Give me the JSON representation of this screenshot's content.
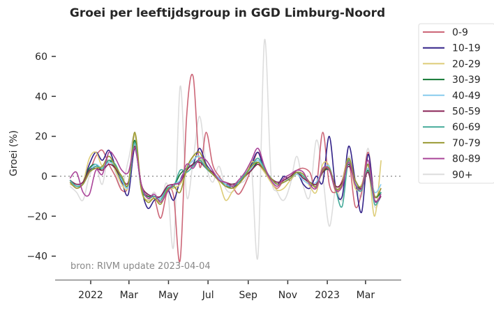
{
  "chart_data": {
    "type": "line",
    "title": "Groei per leeftijdsgroup in GGD Limburg-Noord",
    "ylabel": "Groei (%)",
    "xlabel": "",
    "annotation": "bron: RIVM update 2023-04-04",
    "ylim": [
      -52,
      73
    ],
    "yticks": [
      60,
      40,
      20,
      0,
      -20,
      -40
    ],
    "ytick_labels": [
      "60",
      "40",
      "20",
      "0",
      "−20",
      "−40"
    ],
    "xticks": [
      {
        "date": "2022-01-01",
        "label": "2022"
      },
      {
        "date": "2022-03-01",
        "label": "Mar"
      },
      {
        "date": "2022-05-01",
        "label": "May"
      },
      {
        "date": "2022-07-01",
        "label": "Jul"
      },
      {
        "date": "2022-09-01",
        "label": "Sep"
      },
      {
        "date": "2022-11-01",
        "label": "Nov"
      },
      {
        "date": "2023-01-01",
        "label": "2023"
      },
      {
        "date": "2023-03-01",
        "label": "Mar"
      }
    ],
    "x_start": "2021-11-30",
    "x_step_days": 10,
    "reference_line": 0,
    "legend_position": "outside-right",
    "series": [
      {
        "name": "0-9",
        "color": "#CC6677",
        "values": [
          -3,
          -6,
          -4,
          2,
          10,
          13,
          6,
          0,
          -7,
          -5,
          16,
          -4,
          -10,
          -11,
          -21,
          -8,
          -10,
          -42,
          30,
          50,
          5,
          22,
          6,
          0,
          -4,
          -5,
          -9,
          -4,
          4,
          12,
          4,
          -3,
          -6,
          -2,
          0,
          3,
          4,
          2,
          -5,
          22,
          -4,
          -8,
          -2,
          8,
          -15,
          -8,
          12,
          -10,
          -6
        ]
      },
      {
        "name": "10-19",
        "color": "#332288",
        "values": [
          -2,
          -5,
          -3,
          6,
          12,
          8,
          13,
          5,
          -3,
          -9,
          14,
          -6,
          -16,
          -12,
          -10,
          -6,
          -12,
          -2,
          4,
          6,
          14,
          6,
          2,
          -1,
          -4,
          -6,
          -3,
          0,
          6,
          12,
          3,
          -1,
          -4,
          0,
          -2,
          2,
          -4,
          -6,
          0,
          -3,
          20,
          -6,
          -10,
          15,
          -2,
          -18,
          11,
          -12,
          -10
        ]
      },
      {
        "name": "20-29",
        "color": "#DDCC77",
        "values": [
          -4,
          -5,
          -3,
          9,
          12,
          5,
          8,
          3,
          -4,
          -5,
          21,
          -7,
          -12,
          -11,
          -13,
          -7,
          -6,
          -4,
          2,
          10,
          9,
          4,
          1,
          -3,
          -12,
          -8,
          -4,
          0,
          7,
          6,
          2,
          -3,
          -7,
          -6,
          -2,
          1,
          0,
          -5,
          -8,
          6,
          5,
          -8,
          -3,
          9,
          -6,
          -4,
          5,
          -20,
          8
        ]
      },
      {
        "name": "30-39",
        "color": "#117733",
        "values": [
          -2,
          -4,
          -3,
          4,
          6,
          3,
          8,
          4,
          -2,
          -4,
          18,
          -6,
          -10,
          -10,
          -11,
          -6,
          -5,
          1,
          4,
          6,
          8,
          4,
          1,
          -2,
          -4,
          -4,
          -3,
          0,
          3,
          7,
          3,
          -1,
          -3,
          -2,
          0,
          2,
          -1,
          -3,
          -4,
          2,
          3,
          -5,
          -3,
          6,
          -3,
          -6,
          3,
          -10,
          -8
        ]
      },
      {
        "name": "40-49",
        "color": "#88CCEE",
        "values": [
          -3,
          -5,
          -3,
          3,
          6,
          4,
          7,
          5,
          -2,
          -5,
          16,
          -5,
          -9,
          -10,
          -11,
          -6,
          -4,
          -2,
          4,
          8,
          10,
          5,
          2,
          -1,
          -4,
          -5,
          -3,
          0,
          4,
          8,
          3,
          -1,
          -3,
          -2,
          -1,
          1,
          -2,
          -4,
          -3,
          3,
          5,
          -6,
          -4,
          7,
          -3,
          -5,
          4,
          -8,
          -4
        ]
      },
      {
        "name": "50-59",
        "color": "#882255",
        "values": [
          -2,
          -4,
          -3,
          3,
          4,
          3,
          6,
          4,
          -1,
          -3,
          15,
          -4,
          -9,
          -10,
          -10,
          -5,
          -4,
          -3,
          3,
          6,
          7,
          4,
          2,
          -2,
          -3,
          -4,
          -3,
          0,
          3,
          6,
          3,
          -1,
          -3,
          -2,
          0,
          2,
          -1,
          -3,
          -4,
          2,
          4,
          -5,
          -3,
          5,
          -2,
          -6,
          2,
          -12,
          -10
        ]
      },
      {
        "name": "60-69",
        "color": "#44AA99",
        "values": [
          -2,
          -5,
          -4,
          2,
          5,
          4,
          8,
          6,
          -1,
          -4,
          17,
          -5,
          -11,
          -10,
          -12,
          -6,
          -5,
          3,
          2,
          5,
          8,
          4,
          1,
          -2,
          -5,
          -5,
          -3,
          1,
          5,
          9,
          4,
          -1,
          -4,
          -3,
          -1,
          2,
          0,
          -3,
          -5,
          3,
          4,
          -7,
          -15,
          8,
          -4,
          -7,
          6,
          -14,
          -8
        ]
      },
      {
        "name": "70-79",
        "color": "#999933",
        "values": [
          -3,
          -6,
          -4,
          2,
          4,
          5,
          10,
          5,
          0,
          -4,
          22,
          -6,
          -13,
          -11,
          -14,
          -7,
          -5,
          -8,
          4,
          10,
          12,
          5,
          1,
          -2,
          -5,
          -6,
          -4,
          0,
          5,
          7,
          3,
          -1,
          -4,
          -3,
          -1,
          2,
          1,
          -3,
          -5,
          3,
          4,
          -6,
          -4,
          9,
          -2,
          -5,
          6,
          -10,
          -6
        ]
      },
      {
        "name": "80-89",
        "color": "#AA4499",
        "values": [
          -1,
          2,
          -8,
          -9,
          3,
          1,
          12,
          9,
          3,
          2,
          14,
          -4,
          -11,
          -9,
          -13,
          -8,
          -4,
          -3,
          6,
          4,
          9,
          8,
          3,
          -2,
          -3,
          -5,
          -2,
          2,
          8,
          14,
          5,
          -2,
          -5,
          -1,
          1,
          3,
          2,
          -4,
          -6,
          4,
          3,
          -7,
          -5,
          7,
          -4,
          -6,
          8,
          -12,
          -9
        ]
      },
      {
        "name": "90+",
        "color": "#DDDDDD",
        "values": [
          -5,
          -8,
          -12,
          0,
          5,
          -4,
          12,
          2,
          -5,
          8,
          20,
          -6,
          -12,
          -8,
          -13,
          -4,
          -35,
          45,
          -10,
          8,
          30,
          6,
          -3,
          5,
          -6,
          -8,
          -4,
          -2,
          4,
          -40,
          68,
          2,
          -8,
          -12,
          -4,
          10,
          -5,
          -10,
          18,
          0,
          -25,
          -6,
          -12,
          10,
          -2,
          -10,
          14,
          -15,
          -8
        ]
      }
    ]
  }
}
